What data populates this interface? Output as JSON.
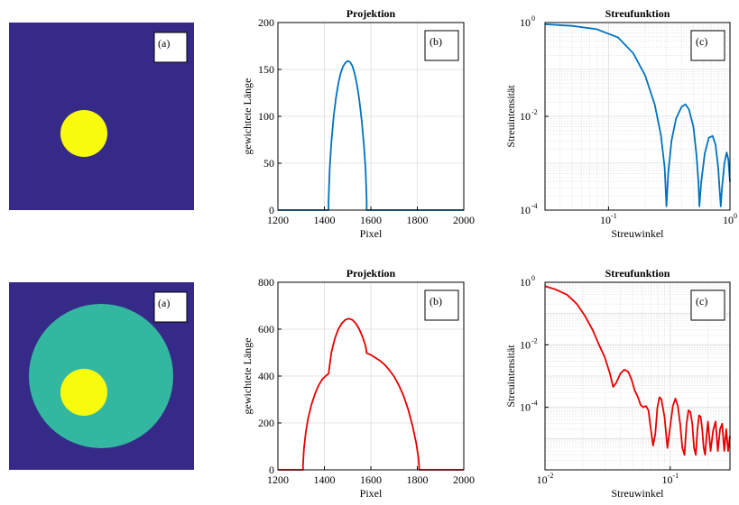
{
  "panel_label": "(a)",
  "colors": {
    "background_dark": "#352a87",
    "disk_yellow": "#f9fb0e",
    "disk_teal": "#33b7a0",
    "series_blue": "#0072bd",
    "series_red": "#e60000",
    "grid": "#dcdcdc"
  },
  "images": [
    {
      "label": "(a)",
      "description_tags": [
        "dark-background",
        "small-yellow-disk"
      ]
    },
    {
      "label": "(a)",
      "description_tags": [
        "dark-background",
        "teal-disk",
        "small-yellow-disk"
      ]
    }
  ],
  "chart_data": [
    {
      "type": "line",
      "title": "Projektion",
      "xlabel": "Pixel",
      "ylabel": "gewichtete Länge",
      "panel_label": "(b)",
      "xlim": [
        1200,
        2000
      ],
      "ylim": [
        0,
        200
      ],
      "xticks": [
        1200,
        1400,
        1600,
        1800,
        2000
      ],
      "yticks": [
        0,
        50,
        100,
        150,
        200
      ],
      "xtick_labels": [
        "1200",
        "1400",
        "1600",
        "1800",
        "2000"
      ],
      "ytick_labels": [
        "0",
        "50",
        "100",
        "150",
        "200"
      ],
      "grid": true,
      "series": [
        {
          "color": "#0072bd",
          "x": [
            1200,
            1418,
            1418,
            1423,
            1430,
            1440,
            1450,
            1460,
            1470,
            1480,
            1490,
            1500,
            1510,
            1520,
            1530,
            1540,
            1550,
            1560,
            1570,
            1577,
            1582,
            1582,
            2000
          ],
          "y": [
            0,
            0,
            10,
            45,
            72,
            100,
            120,
            135,
            146,
            153,
            157,
            159,
            158,
            154,
            146,
            134,
            118,
            97,
            70,
            45,
            10,
            0,
            0
          ]
        }
      ]
    },
    {
      "type": "line",
      "title": "Streufunktion",
      "xlabel": "Streuwinkel",
      "ylabel": "Streuintensität",
      "panel_label": "(c)",
      "xscale": "log",
      "yscale": "log",
      "xlim": [
        0.03,
        1.0
      ],
      "ylim": [
        0.0001,
        1.0
      ],
      "xticks": [
        0.1,
        1.0
      ],
      "yticks": [
        0.0001,
        0.01,
        1.0
      ],
      "xtick_labels": [
        [
          "10",
          "-1"
        ],
        [
          "10",
          "0"
        ]
      ],
      "ytick_labels": [
        [
          "10",
          "-4"
        ],
        [
          "10",
          "-2"
        ],
        [
          "10",
          "0"
        ]
      ],
      "grid": true,
      "series": [
        {
          "color": "#0072bd",
          "x": [
            0.03,
            0.05,
            0.08,
            0.12,
            0.16,
            0.2,
            0.24,
            0.27,
            0.29,
            0.3,
            0.31,
            0.33,
            0.36,
            0.4,
            0.43,
            0.46,
            0.5,
            0.53,
            0.55,
            0.56,
            0.58,
            0.62,
            0.67,
            0.72,
            0.76,
            0.8,
            0.82,
            0.84,
            0.86,
            0.9,
            0.94,
            0.97,
            1.0
          ],
          "y": [
            0.92,
            0.85,
            0.72,
            0.48,
            0.22,
            0.075,
            0.018,
            0.004,
            0.0008,
            0.00012,
            0.0006,
            0.003,
            0.009,
            0.016,
            0.018,
            0.014,
            0.006,
            0.0015,
            0.0004,
            0.00012,
            0.0004,
            0.0016,
            0.0035,
            0.0038,
            0.0025,
            0.0008,
            0.0003,
            0.00012,
            0.0003,
            0.001,
            0.0017,
            0.0012,
            0.0004
          ]
        }
      ]
    },
    {
      "type": "line",
      "title": "Projektion",
      "xlabel": "Pixel",
      "ylabel": "gewichtete Länge",
      "panel_label": "(b)",
      "xlim": [
        1200,
        2000
      ],
      "ylim": [
        0,
        800
      ],
      "xticks": [
        1200,
        1400,
        1600,
        1800,
        2000
      ],
      "yticks": [
        0,
        200,
        400,
        600,
        800
      ],
      "xtick_labels": [
        "1200",
        "1400",
        "1600",
        "1800",
        "2000"
      ],
      "ytick_labels": [
        "0",
        "200",
        "400",
        "600",
        "800"
      ],
      "grid": true,
      "series": [
        {
          "color": "#e60000",
          "x": [
            1200,
            1308,
            1308,
            1312,
            1320,
            1330,
            1345,
            1360,
            1375,
            1390,
            1405,
            1418,
            1430,
            1445,
            1460,
            1475,
            1490,
            1505,
            1520,
            1535,
            1550,
            1565,
            1577,
            1582,
            1600,
            1620,
            1640,
            1660,
            1680,
            1700,
            1720,
            1740,
            1760,
            1780,
            1795,
            1805,
            1808,
            1808,
            2000
          ],
          "y": [
            0,
            0,
            20,
            90,
            160,
            220,
            280,
            325,
            360,
            385,
            400,
            410,
            500,
            560,
            600,
            625,
            640,
            645,
            640,
            625,
            600,
            565,
            530,
            498,
            490,
            478,
            465,
            448,
            425,
            398,
            362,
            318,
            260,
            185,
            115,
            50,
            10,
            0,
            0
          ]
        }
      ]
    },
    {
      "type": "line",
      "title": "Streufunktion",
      "xlabel": "Streuwinkel",
      "ylabel": "Streuintensität",
      "panel_label": "(c)",
      "xscale": "log",
      "yscale": "log",
      "xlim": [
        0.01,
        0.3
      ],
      "ylim": [
        1e-06,
        1.0
      ],
      "xticks": [
        0.01,
        0.1
      ],
      "yticks": [
        0.0001,
        0.01,
        1.0
      ],
      "xtick_labels": [
        [
          "10",
          "-2"
        ],
        [
          "10",
          "-1"
        ]
      ],
      "ytick_labels": [
        [
          "10",
          "-4"
        ],
        [
          "10",
          "-2"
        ],
        [
          "10",
          "0"
        ]
      ],
      "grid": true,
      "series": [
        {
          "color": "#e60000",
          "x": [
            0.01,
            0.012,
            0.015,
            0.018,
            0.021,
            0.024,
            0.027,
            0.03,
            0.033,
            0.035,
            0.037,
            0.04,
            0.043,
            0.046,
            0.049,
            0.052,
            0.055,
            0.058,
            0.061,
            0.064,
            0.067,
            0.07,
            0.073,
            0.076,
            0.079,
            0.082,
            0.085,
            0.09,
            0.095,
            0.1,
            0.105,
            0.11,
            0.115,
            0.12,
            0.125,
            0.13,
            0.135,
            0.14,
            0.145,
            0.15,
            0.155,
            0.16,
            0.165,
            0.17,
            0.175,
            0.18,
            0.185,
            0.19,
            0.195,
            0.2,
            0.21,
            0.22,
            0.23,
            0.24,
            0.25,
            0.26,
            0.27,
            0.28,
            0.29,
            0.3
          ],
          "y": [
            0.75,
            0.6,
            0.4,
            0.2,
            0.08,
            0.03,
            0.01,
            0.004,
            0.0012,
            0.00045,
            0.0006,
            0.0012,
            0.0016,
            0.0014,
            0.0008,
            0.00035,
            0.00022,
            0.00012,
            0.0001,
            0.00011,
            8e-05,
            2e-05,
            6e-06,
            1.4e-05,
            0.0001,
            0.00021,
            0.00018,
            5e-05,
            5e-06,
            2.5e-05,
            0.00011,
            0.00019,
            0.00011,
            3e-05,
            5e-06,
            3e-06,
            3e-05,
            8e-05,
            7e-05,
            3e-05,
            5e-06,
            3e-06,
            2e-05,
            5.5e-05,
            5e-05,
            2e-05,
            5e-06,
            3e-06,
            1.2e-05,
            3.5e-05,
            4e-06,
            1.8e-05,
            3.5e-05,
            4e-06,
            2e-05,
            3e-05,
            4e-06,
            2e-05,
            4e-06,
            1.2e-05
          ]
        }
      ]
    }
  ]
}
